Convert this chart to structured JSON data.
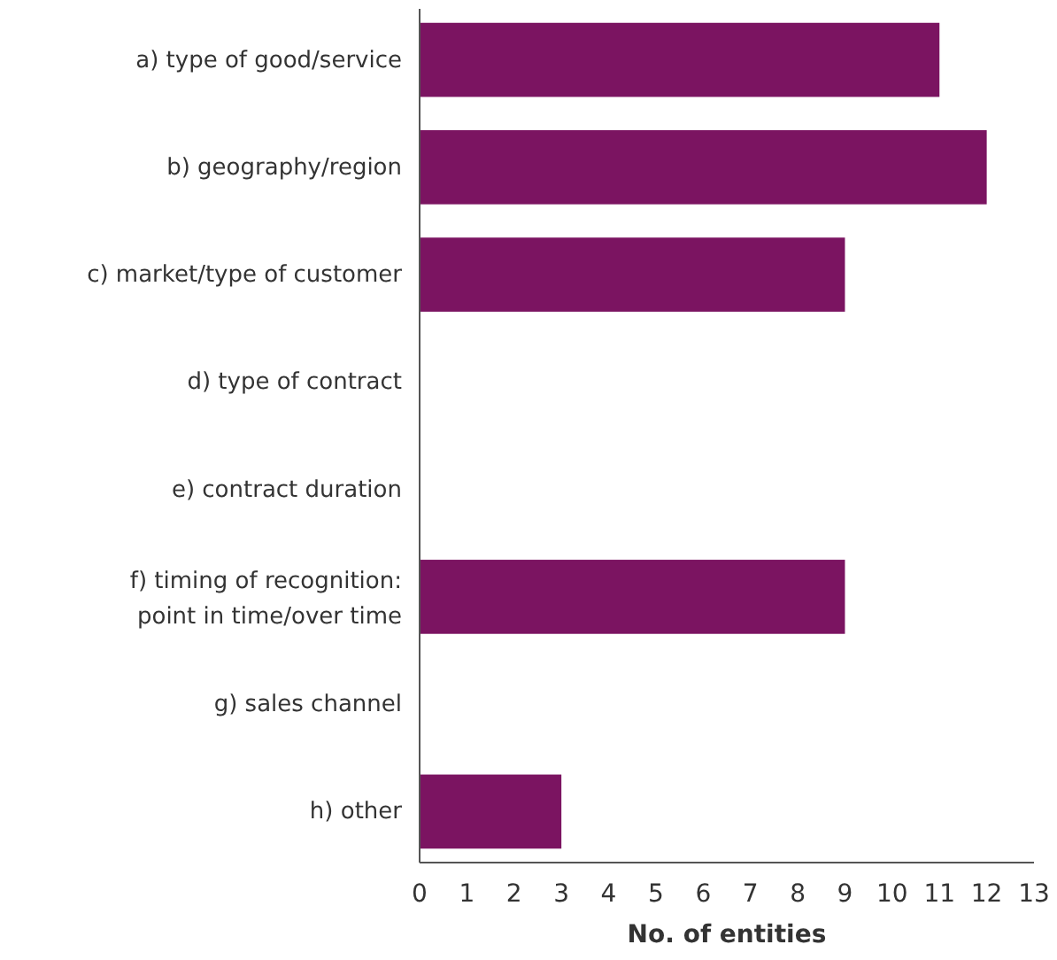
{
  "chart_data": {
    "type": "bar",
    "orientation": "horizontal",
    "xlabel": "No. of entities",
    "categories": [
      "a) type of good/service",
      "b) geography/region",
      "c) market/type of customer",
      "d) type of contract",
      "e) contract duration",
      "f) timing of recognition:\npoint in time/over time",
      "g) sales channel",
      "h) other"
    ],
    "values": [
      11,
      12,
      9,
      0,
      0,
      9,
      0,
      3
    ],
    "color": "#7b1461",
    "xlim": [
      0,
      13
    ],
    "xticks": [
      0,
      1,
      2,
      3,
      4,
      5,
      6,
      7,
      8,
      9,
      10,
      11,
      12,
      13
    ],
    "grid": false
  }
}
